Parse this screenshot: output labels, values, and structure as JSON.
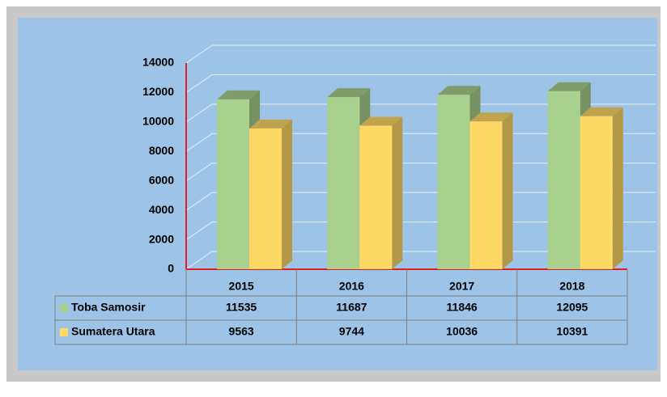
{
  "chart_data": {
    "type": "bar3d",
    "categories": [
      "2015",
      "2016",
      "2017",
      "2018"
    ],
    "series": [
      {
        "name": "Toba Samosir",
        "color": "#a9d18e",
        "values": [
          11535,
          11687,
          11846,
          12095
        ]
      },
      {
        "name": "Sumatera Utara",
        "color": "#ffd966",
        "values": [
          9563,
          9744,
          10036,
          10391
        ]
      }
    ],
    "ylim": [
      0,
      14000
    ],
    "yticks": [
      0,
      2000,
      4000,
      6000,
      8000,
      10000,
      12000,
      14000
    ],
    "grid": true
  }
}
